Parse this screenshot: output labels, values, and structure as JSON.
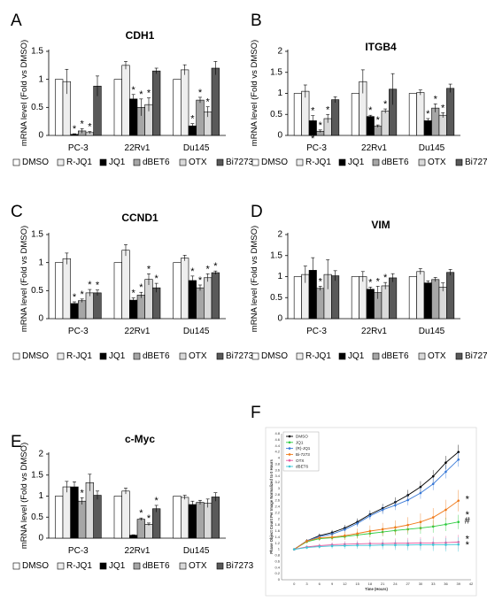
{
  "legend_labels": [
    "DMSO",
    "R-JQ1",
    "JQ1",
    "dBET6",
    "OTX",
    "Bi7273"
  ],
  "colors": {
    "DMSO": "#ffffff",
    "R-JQ1": "#eeeeee",
    "JQ1": "#000000",
    "dBET6": "#a6a6a6",
    "OTX": "#d9d9d9",
    "Bi7273": "#595959"
  },
  "chart_data": [
    {
      "panel": "A",
      "type": "bar",
      "title": "CDH1",
      "ylabel": "mRNA level (Fold vs DMSO)",
      "ylim": [
        0,
        1.5
      ],
      "yticks": [
        "0",
        "0.5",
        "1",
        "1.5"
      ],
      "categories": [
        "PC-3",
        "22Rv1",
        "Du145"
      ],
      "series": [
        {
          "name": "DMSO",
          "values": [
            1,
            1,
            1
          ],
          "errors": [
            0,
            0,
            0
          ]
        },
        {
          "name": "R-JQ1",
          "values": [
            0.96,
            1.25,
            1.17
          ],
          "errors": [
            0.22,
            0.07,
            0.09
          ]
        },
        {
          "name": "JQ1",
          "values": [
            0.02,
            0.65,
            0.17
          ],
          "errors": [
            0.01,
            0.08,
            0.04
          ]
        },
        {
          "name": "dBET6",
          "values": [
            0.08,
            0.5,
            0.63
          ],
          "errors": [
            0.04,
            0.15,
            0.05
          ]
        },
        {
          "name": "OTX",
          "values": [
            0.05,
            0.55,
            0.42
          ],
          "errors": [
            0.02,
            0.12,
            0.09
          ]
        },
        {
          "name": "Bi7273",
          "values": [
            0.88,
            1.15,
            1.2
          ],
          "errors": [
            0.18,
            0.05,
            0.12
          ]
        }
      ],
      "stars": [
        [
          0,
          2
        ],
        [
          0,
          3
        ],
        [
          0,
          4
        ],
        [
          1,
          2
        ],
        [
          1,
          3
        ],
        [
          1,
          4
        ],
        [
          2,
          2
        ],
        [
          2,
          3
        ],
        [
          2,
          4
        ]
      ]
    },
    {
      "panel": "B",
      "type": "bar",
      "title": "ITGB4",
      "ylabel": "mRNA level (Fold vs DMSO)",
      "ylim": [
        0,
        2
      ],
      "yticks": [
        "0",
        "0.5",
        "1",
        "1.5",
        "2"
      ],
      "categories": [
        "PC-3",
        "22Rv1",
        "Du145"
      ],
      "series": [
        {
          "name": "DMSO",
          "values": [
            1,
            1,
            1
          ],
          "errors": [
            0,
            0,
            0
          ]
        },
        {
          "name": "R-JQ1",
          "values": [
            1.05,
            1.28,
            1.02
          ],
          "errors": [
            0.15,
            0.28,
            0.06
          ]
        },
        {
          "name": "JQ1",
          "values": [
            0.35,
            0.45,
            0.35
          ],
          "errors": [
            0.12,
            0.03,
            0.05
          ]
        },
        {
          "name": "dBET6",
          "values": [
            0.1,
            0.22,
            0.65
          ],
          "errors": [
            0.03,
            0.03,
            0.1
          ]
        },
        {
          "name": "OTX",
          "values": [
            0.4,
            0.58,
            0.48
          ],
          "errors": [
            0.1,
            0.05,
            0.06
          ]
        },
        {
          "name": "Bi7273",
          "values": [
            0.85,
            1.1,
            1.12
          ],
          "errors": [
            0.07,
            0.37,
            0.1
          ]
        }
      ],
      "stars": [
        [
          0,
          2
        ],
        [
          0,
          3
        ],
        [
          0,
          4
        ],
        [
          1,
          2
        ],
        [
          1,
          3
        ],
        [
          1,
          4
        ],
        [
          2,
          2
        ],
        [
          2,
          3
        ],
        [
          2,
          4
        ]
      ],
      "extra_star_below": [
        0,
        2
      ]
    },
    {
      "panel": "C",
      "type": "bar",
      "title": "CCND1",
      "ylabel": "mRNA level (Fold vs DMSO)",
      "ylim": [
        0,
        1.5
      ],
      "yticks": [
        "0",
        "0.5",
        "1",
        "1.5"
      ],
      "categories": [
        "PC-3",
        "22Rv1",
        "Du145"
      ],
      "series": [
        {
          "name": "DMSO",
          "values": [
            1,
            1,
            1
          ],
          "errors": [
            0,
            0,
            0
          ]
        },
        {
          "name": "R-JQ1",
          "values": [
            1.07,
            1.22,
            1.08
          ],
          "errors": [
            0.1,
            0.1,
            0.05
          ]
        },
        {
          "name": "JQ1",
          "values": [
            0.27,
            0.33,
            0.68
          ],
          "errors": [
            0.03,
            0.04,
            0.08
          ]
        },
        {
          "name": "dBET6",
          "values": [
            0.32,
            0.42,
            0.55
          ],
          "errors": [
            0.03,
            0.05,
            0.05
          ]
        },
        {
          "name": "OTX",
          "values": [
            0.46,
            0.7,
            0.73
          ],
          "errors": [
            0.06,
            0.1,
            0.07
          ]
        },
        {
          "name": "Bi7273",
          "values": [
            0.46,
            0.55,
            0.82
          ],
          "errors": [
            0.05,
            0.08,
            0.03
          ]
        }
      ],
      "stars": [
        [
          0,
          2
        ],
        [
          0,
          3
        ],
        [
          0,
          4
        ],
        [
          0,
          5
        ],
        [
          1,
          2
        ],
        [
          1,
          3
        ],
        [
          1,
          4
        ],
        [
          1,
          5
        ],
        [
          2,
          2
        ],
        [
          2,
          3
        ],
        [
          2,
          4
        ],
        [
          2,
          5
        ]
      ]
    },
    {
      "panel": "D",
      "type": "bar",
      "title": "VIM",
      "ylabel": "mRNA level (Fold vs DMSO)",
      "ylim": [
        0,
        2
      ],
      "yticks": [
        "0",
        "0.5",
        "1",
        "1.5",
        "2"
      ],
      "categories": [
        "PC-3",
        "22Rv1",
        "Du145"
      ],
      "series": [
        {
          "name": "DMSO",
          "values": [
            1,
            1,
            1
          ],
          "errors": [
            0,
            0,
            0
          ]
        },
        {
          "name": "R-JQ1",
          "values": [
            1.05,
            1.0,
            1.12
          ],
          "errors": [
            0.2,
            0.12,
            0.07
          ]
        },
        {
          "name": "JQ1",
          "values": [
            1.15,
            0.7,
            0.85
          ],
          "errors": [
            0.3,
            0.05,
            0.05
          ]
        },
        {
          "name": "dBET6",
          "values": [
            0.72,
            0.62,
            0.93
          ],
          "errors": [
            0.05,
            0.15,
            0.05
          ]
        },
        {
          "name": "OTX",
          "values": [
            1.05,
            0.78,
            0.75
          ],
          "errors": [
            0.35,
            0.08,
            0.1
          ]
        },
        {
          "name": "Bi7273",
          "values": [
            1.02,
            0.97,
            1.1
          ],
          "errors": [
            0.12,
            0.1,
            0.07
          ]
        }
      ],
      "stars": [
        [
          0,
          3
        ],
        [
          1,
          2
        ],
        [
          1,
          3
        ],
        [
          1,
          4
        ]
      ]
    },
    {
      "panel": "E",
      "type": "bar",
      "title": "c-Myc",
      "ylabel": "mRNA level (Fold vs DMSO)",
      "ylim": [
        0,
        2
      ],
      "yticks": [
        "0",
        "0.5",
        "1",
        "1.5",
        "2"
      ],
      "categories": [
        "PC-3",
        "22Rv1",
        "Du145"
      ],
      "series": [
        {
          "name": "DMSO",
          "values": [
            1,
            1,
            1
          ],
          "errors": [
            0,
            0,
            0
          ]
        },
        {
          "name": "R-JQ1",
          "values": [
            1.22,
            1.12,
            0.97
          ],
          "errors": [
            0.13,
            0.07,
            0.05
          ]
        },
        {
          "name": "JQ1",
          "values": [
            1.22,
            0.07,
            0.8
          ],
          "errors": [
            0.12,
            0.01,
            0.08
          ]
        },
        {
          "name": "dBET6",
          "values": [
            0.88,
            0.45,
            0.85
          ],
          "errors": [
            0.08,
            0.03,
            0.05
          ]
        },
        {
          "name": "OTX",
          "values": [
            1.32,
            0.33,
            0.83
          ],
          "errors": [
            0.2,
            0.03,
            0.1
          ]
        },
        {
          "name": "Bi7273",
          "values": [
            1.02,
            0.7,
            0.98
          ],
          "errors": [
            0.1,
            0.08,
            0.1
          ]
        }
      ],
      "stars": [
        [
          0,
          3
        ],
        [
          1,
          3
        ],
        [
          1,
          4
        ],
        [
          1,
          5
        ]
      ]
    },
    {
      "panel": "F",
      "type": "line",
      "xlabel": "Time (Hours)",
      "ylabel": "Phase Object Count Per Image Normalized to 0 Hours",
      "xlim": [
        -3,
        42
      ],
      "ylim": [
        0,
        4.8
      ],
      "xticks": [
        "0",
        "3",
        "6",
        "9",
        "12",
        "15",
        "18",
        "21",
        "24",
        "27",
        "30",
        "33",
        "36",
        "39",
        "42"
      ],
      "yticks": [
        "0",
        "0.2",
        "0.4",
        "0.6",
        "0.8",
        "1",
        "1.2",
        "1.4",
        "1.6",
        "1.8",
        "2",
        "2.2",
        "2.4",
        "2.6",
        "2.8",
        "3",
        "3.2",
        "3.4",
        "3.6",
        "3.8",
        "4",
        "4.2",
        "4.4",
        "4.6",
        "4.8"
      ],
      "x": [
        0,
        3,
        6,
        9,
        12,
        15,
        18,
        21,
        24,
        27,
        30,
        33,
        36,
        39
      ],
      "series": [
        {
          "name": "DMSO",
          "color": "#000000",
          "values": [
            1.0,
            1.28,
            1.45,
            1.55,
            1.7,
            1.9,
            2.15,
            2.35,
            2.55,
            2.78,
            3.05,
            3.4,
            3.85,
            4.2
          ]
        },
        {
          "name": "JQ1",
          "color": "#2ecc40",
          "values": [
            1.0,
            1.25,
            1.35,
            1.38,
            1.42,
            1.47,
            1.52,
            1.57,
            1.62,
            1.66,
            1.7,
            1.75,
            1.82,
            1.9
          ]
        },
        {
          "name": "(R)-JQ1",
          "color": "#3b7bd8",
          "values": [
            1.0,
            1.28,
            1.42,
            1.5,
            1.65,
            1.85,
            2.1,
            2.3,
            2.45,
            2.62,
            2.85,
            3.15,
            3.55,
            3.95
          ]
        },
        {
          "name": "Bi-7273",
          "color": "#f07a1a",
          "values": [
            1.0,
            1.27,
            1.38,
            1.4,
            1.45,
            1.52,
            1.6,
            1.66,
            1.72,
            1.8,
            1.9,
            2.05,
            2.3,
            2.6
          ]
        },
        {
          "name": "OTX",
          "color": "#e85ba0",
          "values": [
            1.0,
            1.08,
            1.12,
            1.15,
            1.17,
            1.18,
            1.19,
            1.19,
            1.2,
            1.2,
            1.21,
            1.21,
            1.22,
            1.24
          ]
        },
        {
          "name": "dBET6",
          "color": "#3ec6d6",
          "values": [
            1.0,
            1.06,
            1.09,
            1.11,
            1.12,
            1.13,
            1.13,
            1.14,
            1.14,
            1.14,
            1.15,
            1.15,
            1.15,
            1.16
          ]
        }
      ],
      "end_marks": [
        "*",
        "*",
        "#",
        "*",
        "*"
      ]
    }
  ]
}
